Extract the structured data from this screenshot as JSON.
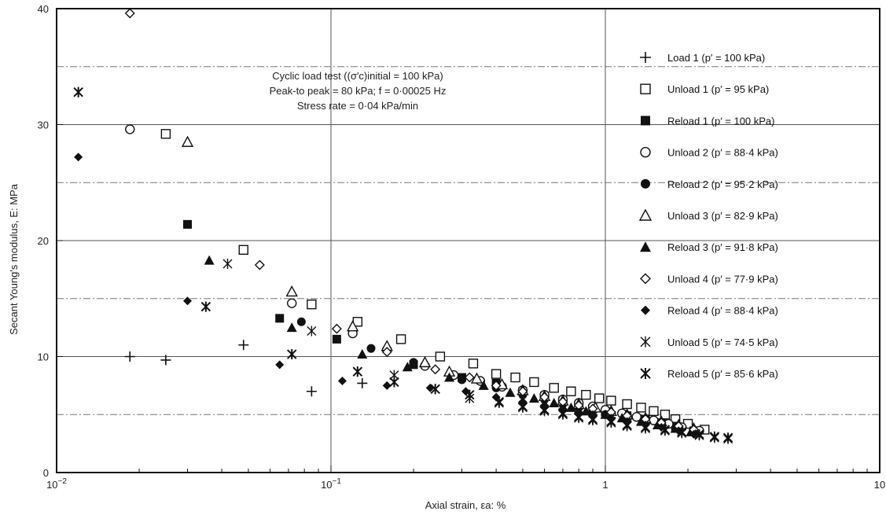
{
  "chart_data": {
    "type": "scatter",
    "x_scale": "log",
    "xlim": [
      0.01,
      10
    ],
    "ylim": [
      0,
      40
    ],
    "xlabel": "Axial strain, εa: %",
    "ylabel": "Secant Young's modulus, E: MPa",
    "x_ticks": [
      {
        "value": 0.01,
        "base": "10",
        "exp": "−2"
      },
      {
        "value": 0.1,
        "base": "10",
        "exp": "−1"
      },
      {
        "value": 1,
        "base": "1",
        "exp": ""
      },
      {
        "value": 10,
        "base": "10",
        "exp": ""
      }
    ],
    "y_ticks": [
      0,
      10,
      20,
      30,
      40
    ],
    "annotation": {
      "line1": "Cyclic load test ((σ′c)initial = 100 kPa)",
      "line2": "Peak-to peak = 80 kPa; f = 0·00025 Hz",
      "line3": "Stress rate = 0·04 kPa/min"
    },
    "legend_position": "right",
    "series": [
      {
        "name": "Load 1 (p′ = 100 kPa)",
        "marker": "plus",
        "points": [
          [
            0.0185,
            10.0
          ],
          [
            0.025,
            9.7
          ],
          [
            0.048,
            11.0
          ],
          [
            0.085,
            7.0
          ],
          [
            0.13,
            7.7
          ]
        ]
      },
      {
        "name": "Unload 1 (p′ = 95 kPa)",
        "marker": "square-open",
        "points": [
          [
            0.025,
            29.2
          ],
          [
            0.048,
            19.2
          ],
          [
            0.085,
            14.5
          ],
          [
            0.125,
            13.0
          ],
          [
            0.18,
            11.5
          ],
          [
            0.25,
            10.0
          ],
          [
            0.33,
            9.4
          ],
          [
            0.4,
            8.5
          ],
          [
            0.47,
            8.2
          ],
          [
            0.55,
            7.8
          ],
          [
            0.65,
            7.3
          ],
          [
            0.75,
            7.0
          ],
          [
            0.85,
            6.7
          ],
          [
            0.95,
            6.4
          ],
          [
            1.05,
            6.2
          ],
          [
            1.2,
            5.9
          ],
          [
            1.35,
            5.6
          ],
          [
            1.5,
            5.3
          ],
          [
            1.65,
            5.0
          ],
          [
            1.8,
            4.6
          ],
          [
            2.0,
            4.2
          ],
          [
            2.3,
            3.7
          ]
        ]
      },
      {
        "name": "Reload 1 (p′ = 100 kPa)",
        "marker": "square-filled",
        "points": [
          [
            0.03,
            21.4
          ],
          [
            0.065,
            13.3
          ],
          [
            0.105,
            11.5
          ],
          [
            0.2,
            9.3
          ],
          [
            0.3,
            8.2
          ],
          [
            0.4,
            7.7
          ],
          [
            0.5,
            7.0
          ],
          [
            0.6,
            6.6
          ],
          [
            0.7,
            6.2
          ],
          [
            0.8,
            5.8
          ],
          [
            0.9,
            5.5
          ],
          [
            1.0,
            5.2
          ],
          [
            1.2,
            4.9
          ],
          [
            1.4,
            4.6
          ],
          [
            1.6,
            4.3
          ],
          [
            1.8,
            4.0
          ],
          [
            2.1,
            3.6
          ]
        ]
      },
      {
        "name": "Unload 2 (p′ = 88·4 kPa)",
        "marker": "circle-open",
        "points": [
          [
            0.0185,
            29.6
          ],
          [
            0.072,
            14.6
          ],
          [
            0.12,
            12.0
          ],
          [
            0.16,
            10.6
          ],
          [
            0.22,
            9.2
          ],
          [
            0.28,
            8.4
          ],
          [
            0.35,
            7.9
          ],
          [
            0.42,
            7.4
          ],
          [
            0.5,
            7.1
          ],
          [
            0.6,
            6.7
          ],
          [
            0.7,
            6.3
          ],
          [
            0.8,
            6.0
          ],
          [
            0.9,
            5.7
          ],
          [
            1.0,
            5.4
          ],
          [
            1.15,
            5.1
          ],
          [
            1.3,
            4.8
          ],
          [
            1.5,
            4.5
          ],
          [
            1.7,
            4.2
          ],
          [
            1.9,
            3.9
          ],
          [
            2.2,
            3.6
          ]
        ]
      },
      {
        "name": "Reload 2 (p′ = 95·2 kPa)",
        "marker": "circle-filled",
        "points": [
          [
            0.078,
            13.0
          ],
          [
            0.14,
            10.7
          ],
          [
            0.2,
            9.5
          ],
          [
            0.3,
            8.0
          ],
          [
            0.4,
            7.3
          ],
          [
            0.5,
            6.7
          ],
          [
            0.6,
            6.3
          ],
          [
            0.7,
            5.9
          ],
          [
            0.8,
            5.6
          ],
          [
            0.9,
            5.3
          ],
          [
            1.0,
            5.0
          ],
          [
            1.2,
            4.7
          ],
          [
            1.4,
            4.4
          ],
          [
            1.6,
            4.1
          ],
          [
            1.85,
            3.8
          ],
          [
            2.1,
            3.5
          ]
        ]
      },
      {
        "name": "Unload 3 (p′ = 82·9 kPa)",
        "marker": "triangle-open",
        "points": [
          [
            0.03,
            28.5
          ],
          [
            0.072,
            15.6
          ],
          [
            0.12,
            12.6
          ],
          [
            0.16,
            10.9
          ],
          [
            0.22,
            9.5
          ],
          [
            0.27,
            8.7
          ],
          [
            0.34,
            8.1
          ],
          [
            0.42,
            7.6
          ],
          [
            0.5,
            7.1
          ],
          [
            0.6,
            6.6
          ],
          [
            0.7,
            6.2
          ],
          [
            0.8,
            5.9
          ],
          [
            0.92,
            5.6
          ],
          [
            1.05,
            5.3
          ],
          [
            1.2,
            5.0
          ],
          [
            1.4,
            4.7
          ],
          [
            1.6,
            4.4
          ],
          [
            1.85,
            4.1
          ],
          [
            2.1,
            3.8
          ]
        ]
      },
      {
        "name": "Reload 3 (p′ = 91·8 kPa)",
        "marker": "triangle-filled",
        "points": [
          [
            0.036,
            18.3
          ],
          [
            0.072,
            12.5
          ],
          [
            0.13,
            10.2
          ],
          [
            0.19,
            9.1
          ],
          [
            0.27,
            8.2
          ],
          [
            0.36,
            7.5
          ],
          [
            0.45,
            6.9
          ],
          [
            0.55,
            6.4
          ],
          [
            0.65,
            6.0
          ],
          [
            0.75,
            5.6
          ],
          [
            0.85,
            5.3
          ],
          [
            1.0,
            5.0
          ],
          [
            1.15,
            4.7
          ],
          [
            1.35,
            4.4
          ],
          [
            1.55,
            4.1
          ],
          [
            1.8,
            3.8
          ],
          [
            2.05,
            3.5
          ]
        ]
      },
      {
        "name": "Unload 4 (p′ = 77·9 kPa)",
        "marker": "diamond-open",
        "points": [
          [
            0.0185,
            39.6
          ],
          [
            0.055,
            17.9
          ],
          [
            0.105,
            12.4
          ],
          [
            0.16,
            10.4
          ],
          [
            0.24,
            8.9
          ],
          [
            0.32,
            8.2
          ],
          [
            0.4,
            7.5
          ],
          [
            0.5,
            7.0
          ],
          [
            0.6,
            6.5
          ],
          [
            0.7,
            6.1
          ],
          [
            0.8,
            5.8
          ],
          [
            0.9,
            5.5
          ],
          [
            1.05,
            5.2
          ],
          [
            1.2,
            4.9
          ],
          [
            1.4,
            4.6
          ],
          [
            1.6,
            4.3
          ],
          [
            1.85,
            4.0
          ],
          [
            2.1,
            3.7
          ]
        ]
      },
      {
        "name": "Reload 4 (p′ = 88·4 kPa)",
        "marker": "diamond-filled",
        "points": [
          [
            0.012,
            27.2
          ],
          [
            0.03,
            14.8
          ],
          [
            0.065,
            9.3
          ],
          [
            0.11,
            7.9
          ],
          [
            0.16,
            7.5
          ],
          [
            0.23,
            7.3
          ],
          [
            0.31,
            7.0
          ],
          [
            0.4,
            6.5
          ],
          [
            0.5,
            6.1
          ],
          [
            0.6,
            5.8
          ],
          [
            0.7,
            5.5
          ],
          [
            0.8,
            5.2
          ],
          [
            0.9,
            5.0
          ],
          [
            1.05,
            4.7
          ],
          [
            1.2,
            4.4
          ],
          [
            1.4,
            4.1
          ],
          [
            1.6,
            3.9
          ],
          [
            1.85,
            3.6
          ],
          [
            2.1,
            3.3
          ]
        ]
      },
      {
        "name": "Unload 5 (p′ = 74·5 kPa)",
        "marker": "asterisk",
        "points": [
          [
            0.012,
            32.8
          ],
          [
            0.042,
            18.0
          ],
          [
            0.085,
            12.2
          ],
          [
            0.125,
            8.7
          ],
          [
            0.17,
            8.4
          ],
          [
            0.24,
            7.2
          ],
          [
            0.32,
            6.4
          ],
          [
            0.41,
            6.0
          ],
          [
            0.5,
            5.6
          ],
          [
            0.6,
            5.3
          ],
          [
            0.7,
            5.0
          ],
          [
            0.8,
            4.7
          ],
          [
            0.9,
            4.5
          ],
          [
            1.05,
            4.3
          ],
          [
            1.2,
            4.0
          ],
          [
            1.4,
            3.8
          ],
          [
            1.65,
            3.6
          ],
          [
            1.9,
            3.4
          ],
          [
            2.2,
            3.2
          ],
          [
            2.5,
            3.0
          ],
          [
            2.8,
            2.9
          ]
        ]
      },
      {
        "name": "Reload 5 (p′ = 85·6 kPa)",
        "marker": "asterisk-bold",
        "points": [
          [
            0.012,
            32.8
          ],
          [
            0.035,
            14.3
          ],
          [
            0.072,
            10.2
          ],
          [
            0.125,
            8.7
          ],
          [
            0.17,
            7.8
          ],
          [
            0.24,
            7.2
          ],
          [
            0.32,
            6.7
          ],
          [
            0.41,
            6.1
          ],
          [
            0.5,
            5.7
          ],
          [
            0.6,
            5.4
          ],
          [
            0.7,
            5.1
          ],
          [
            0.8,
            4.8
          ],
          [
            0.9,
            4.6
          ],
          [
            1.05,
            4.4
          ],
          [
            1.2,
            4.1
          ],
          [
            1.4,
            3.9
          ],
          [
            1.65,
            3.7
          ],
          [
            1.9,
            3.5
          ],
          [
            2.2,
            3.3
          ],
          [
            2.5,
            3.1
          ],
          [
            2.8,
            3.0
          ]
        ]
      }
    ]
  }
}
